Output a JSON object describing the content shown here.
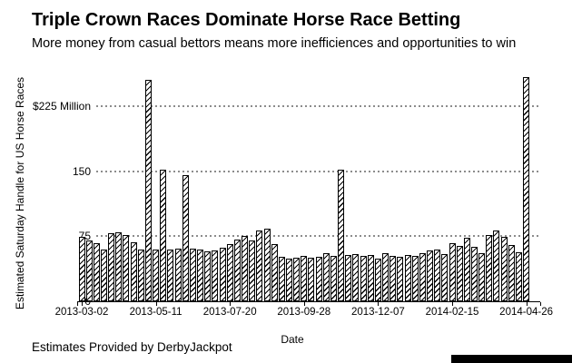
{
  "header": {
    "title": "Triple Crown Races Dominate Horse Race Betting",
    "subtitle": "More money from casual bettors means more inefficiences and opportunities to win"
  },
  "chart_data": {
    "type": "bar",
    "title": "Triple Crown Races Dominate Horse Race Betting",
    "xlabel": "Date",
    "ylabel": "Estimated Saturday Handle for US Horse Races",
    "x_ticks": [
      "2013-03-02",
      "2013-05-11",
      "2013-07-20",
      "2013-09-28",
      "2013-12-07",
      "2014-02-15",
      "2014-04-26"
    ],
    "y_ticks": [
      {
        "label": "0",
        "value": 0
      },
      {
        "label": "75",
        "value": 75
      },
      {
        "label": "150",
        "value": 150
      },
      {
        "label": "$225 Million",
        "value": 225
      }
    ],
    "ylim": [
      0,
      260
    ],
    "grid": "horizontal dotted at 75, 150, 225",
    "grid_color": "#8c8c8c",
    "bar_style": "white fill, black outline, black diagonal hatch",
    "bars_are_weekly_saturdays": true,
    "values": [
      74,
      70,
      67,
      60,
      78,
      80,
      76,
      68,
      60,
      255,
      60,
      152,
      60,
      61,
      145,
      61,
      60,
      58,
      59,
      62,
      66,
      71,
      75,
      70,
      82,
      84,
      66,
      51,
      49,
      50,
      52,
      50,
      51,
      55,
      52,
      152,
      53,
      54,
      52,
      53,
      49,
      55,
      52,
      51,
      53,
      52,
      55,
      59,
      60,
      54,
      67,
      64,
      73,
      63,
      55,
      76,
      82,
      74,
      65,
      56,
      258
    ]
  },
  "footer": {
    "xaxis_title": "Date",
    "credit": "Estimates Provided by DerbyJackpot"
  },
  "artifact": {
    "description": "black screen-capture bar bottom-right",
    "color": "#000000"
  }
}
